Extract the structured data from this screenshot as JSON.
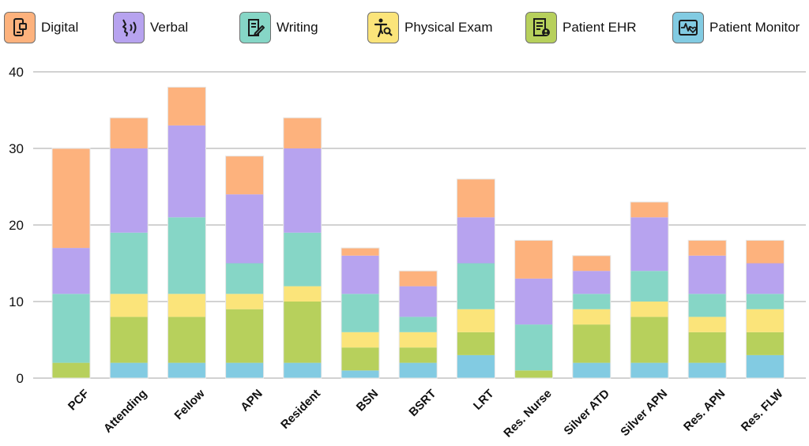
{
  "legend": {
    "digital": "Digital",
    "verbal": "Verbal",
    "writing": "Writing",
    "physical_exam": "Physical Exam",
    "patient_ehr": "Patient EHR",
    "patient_monitor": "Patient Monitor"
  },
  "colors": {
    "digital": "#fdb27d",
    "verbal": "#b7a3ef",
    "writing": "#86d6c6",
    "physical_exam": "#fbe47a",
    "patient_ehr": "#b7d05c",
    "patient_monitor": "#82cbe2",
    "grid": "#b7b7b7"
  },
  "chart_data": {
    "type": "bar",
    "stacked": true,
    "categories": [
      "PCF",
      "Attending",
      "Fellow",
      "APN",
      "Resident",
      "BSN",
      "BSRT",
      "LRT",
      "Res. Nurse",
      "Silver ATD",
      "Silver APN",
      "Res. APN",
      "Res. FLW"
    ],
    "series": [
      {
        "key": "patient_monitor",
        "name": "Patient Monitor",
        "values": [
          0,
          2,
          2,
          2,
          2,
          1,
          2,
          3,
          0,
          2,
          2,
          2,
          3
        ]
      },
      {
        "key": "patient_ehr",
        "name": "Patient EHR",
        "values": [
          2,
          6,
          6,
          7,
          8,
          3,
          2,
          3,
          1,
          5,
          6,
          4,
          3
        ]
      },
      {
        "key": "physical_exam",
        "name": "Physical Exam",
        "values": [
          0,
          3,
          3,
          2,
          2,
          2,
          2,
          3,
          0,
          2,
          2,
          2,
          3
        ]
      },
      {
        "key": "writing",
        "name": "Writing",
        "values": [
          9,
          8,
          10,
          4,
          7,
          5,
          2,
          6,
          6,
          2,
          4,
          3,
          2
        ]
      },
      {
        "key": "verbal",
        "name": "Verbal",
        "values": [
          6,
          11,
          12,
          9,
          11,
          5,
          4,
          6,
          6,
          3,
          7,
          5,
          4
        ]
      },
      {
        "key": "digital",
        "name": "Digital",
        "values": [
          13,
          4,
          5,
          5,
          4,
          1,
          2,
          5,
          5,
          2,
          2,
          2,
          3
        ]
      }
    ],
    "y_ticks": [
      "0",
      "10",
      "20",
      "30",
      "40"
    ],
    "ylim": [
      0,
      40
    ],
    "title": "",
    "xlabel": "",
    "ylabel": "",
    "grid": true,
    "legend_position": "top"
  }
}
